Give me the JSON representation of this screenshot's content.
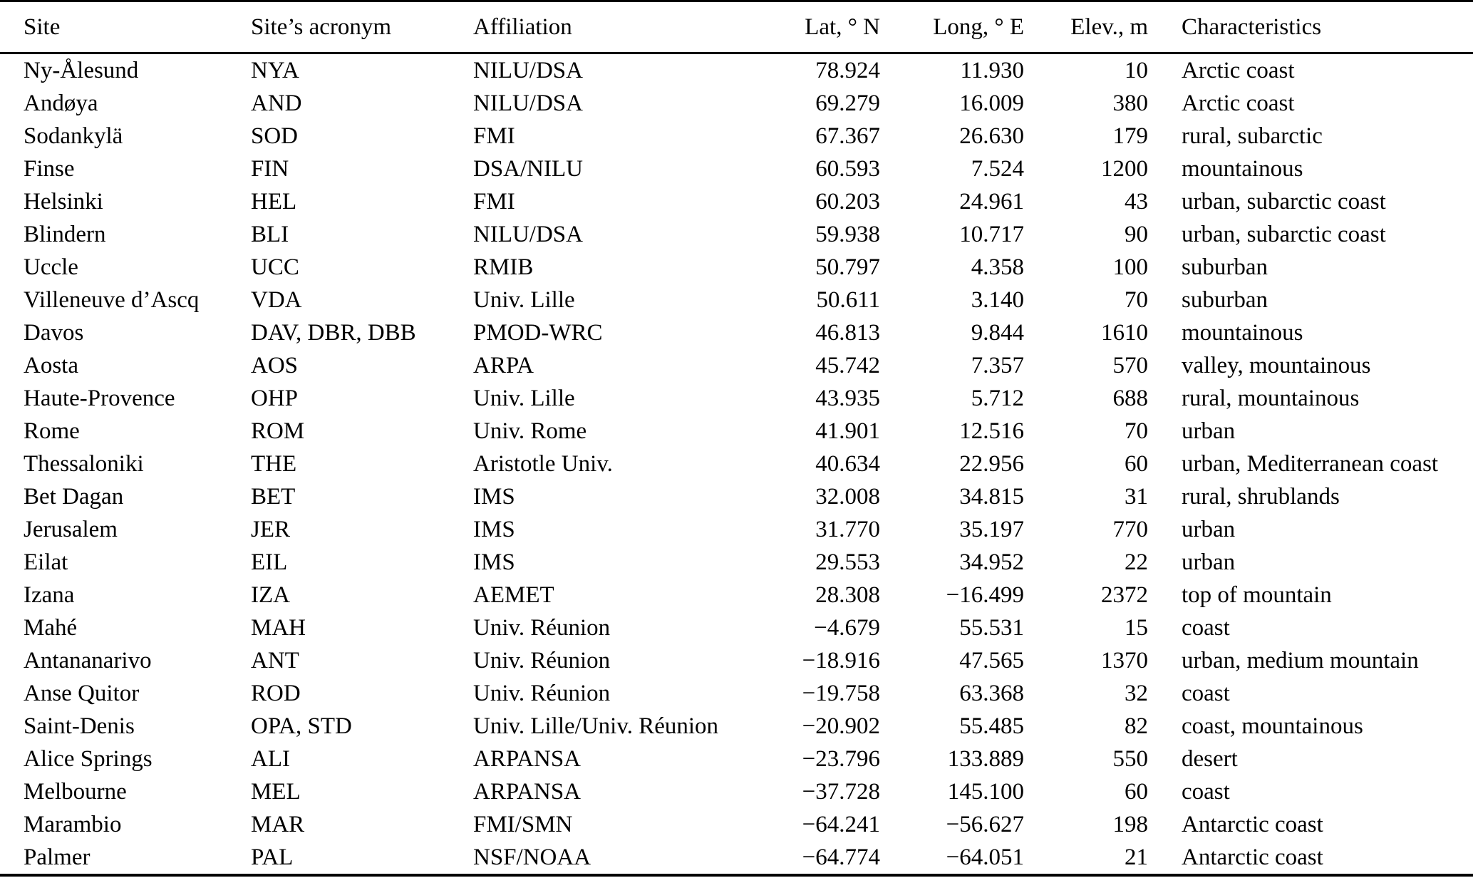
{
  "colors": {
    "text": "#000000",
    "background": "#ffffff",
    "rule": "#000000"
  },
  "table": {
    "columns": [
      {
        "key": "site",
        "label": "Site"
      },
      {
        "key": "acronym",
        "label": "Site’s acronym"
      },
      {
        "key": "affiliation",
        "label": "Affiliation"
      },
      {
        "key": "lat",
        "label": "Lat, ° N"
      },
      {
        "key": "long",
        "label": "Long, ° E"
      },
      {
        "key": "elev",
        "label": "Elev., m"
      },
      {
        "key": "characteristics",
        "label": "Characteristics"
      }
    ],
    "rows": [
      [
        "Ny-Ålesund",
        "NYA",
        "NILU/DSA",
        "78.924",
        "11.930",
        "10",
        "Arctic coast"
      ],
      [
        "Andøya",
        "AND",
        "NILU/DSA",
        "69.279",
        "16.009",
        "380",
        "Arctic coast"
      ],
      [
        "Sodankylä",
        "SOD",
        "FMI",
        "67.367",
        "26.630",
        "179",
        "rural, subarctic"
      ],
      [
        "Finse",
        "FIN",
        "DSA/NILU",
        "60.593",
        "7.524",
        "1200",
        "mountainous"
      ],
      [
        "Helsinki",
        "HEL",
        "FMI",
        "60.203",
        "24.961",
        "43",
        "urban, subarctic coast"
      ],
      [
        "Blindern",
        "BLI",
        "NILU/DSA",
        "59.938",
        "10.717",
        "90",
        "urban, subarctic coast"
      ],
      [
        "Uccle",
        "UCC",
        "RMIB",
        "50.797",
        "4.358",
        "100",
        "suburban"
      ],
      [
        "Villeneuve d’Ascq",
        "VDA",
        "Univ. Lille",
        "50.611",
        "3.140",
        "70",
        "suburban"
      ],
      [
        "Davos",
        "DAV, DBR, DBB",
        "PMOD-WRC",
        "46.813",
        "9.844",
        "1610",
        "mountainous"
      ],
      [
        "Aosta",
        "AOS",
        "ARPA",
        "45.742",
        "7.357",
        "570",
        "valley, mountainous"
      ],
      [
        "Haute-Provence",
        "OHP",
        "Univ. Lille",
        "43.935",
        "5.712",
        "688",
        "rural, mountainous"
      ],
      [
        "Rome",
        "ROM",
        "Univ. Rome",
        "41.901",
        "12.516",
        "70",
        "urban"
      ],
      [
        "Thessaloniki",
        "THE",
        "Aristotle Univ.",
        "40.634",
        "22.956",
        "60",
        "urban, Mediterranean coast"
      ],
      [
        "Bet Dagan",
        "BET",
        "IMS",
        "32.008",
        "34.815",
        "31",
        "rural, shrublands"
      ],
      [
        "Jerusalem",
        "JER",
        "IMS",
        "31.770",
        "35.197",
        "770",
        "urban"
      ],
      [
        "Eilat",
        "EIL",
        "IMS",
        "29.553",
        "34.952",
        "22",
        "urban"
      ],
      [
        "Izana",
        "IZA",
        "AEMET",
        "28.308",
        "−16.499",
        "2372",
        "top of mountain"
      ],
      [
        "Mahé",
        "MAH",
        "Univ. Réunion",
        "−4.679",
        "55.531",
        "15",
        "coast"
      ],
      [
        "Antananarivo",
        "ANT",
        "Univ. Réunion",
        "−18.916",
        "47.565",
        "1370",
        "urban, medium mountain"
      ],
      [
        "Anse Quitor",
        "ROD",
        "Univ. Réunion",
        "−19.758",
        "63.368",
        "32",
        "coast"
      ],
      [
        "Saint-Denis",
        "OPA, STD",
        "Univ. Lille/Univ. Réunion",
        "−20.902",
        "55.485",
        "82",
        "coast, mountainous"
      ],
      [
        "Alice Springs",
        "ALI",
        "ARPANSA",
        "−23.796",
        "133.889",
        "550",
        "desert"
      ],
      [
        "Melbourne",
        "MEL",
        "ARPANSA",
        "−37.728",
        "145.100",
        "60",
        "coast"
      ],
      [
        "Marambio",
        "MAR",
        "FMI/SMN",
        "−64.241",
        "−56.627",
        "198",
        "Antarctic coast"
      ],
      [
        "Palmer",
        "PAL",
        "NSF/NOAA",
        "−64.774",
        "−64.051",
        "21",
        "Antarctic coast"
      ]
    ]
  }
}
